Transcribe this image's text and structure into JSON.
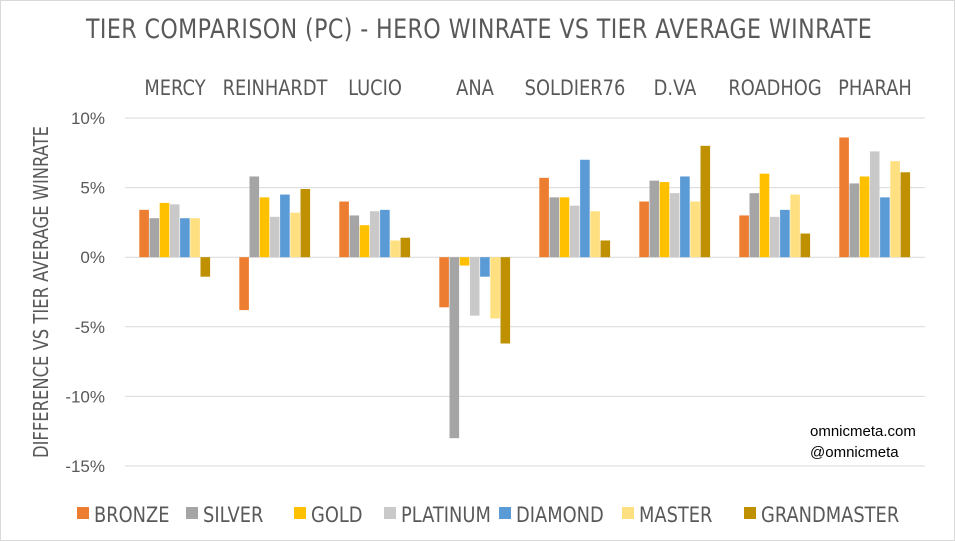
{
  "chart_data": {
    "type": "bar",
    "title": "TIER COMPARISON (PC) - HERO WINRATE VS TIER AVERAGE WINRATE",
    "ylabel": "DIFFERENCE VS TIER AVERAGE WINRATE",
    "categories": [
      "MERCY",
      "REINHARDT",
      "LUCIO",
      "ANA",
      "SOLDIER76",
      "D.VA",
      "ROADHOG",
      "PHARAH"
    ],
    "ylim": [
      -15,
      10
    ],
    "yticks": [
      {
        "value": 10,
        "label": "10%"
      },
      {
        "value": 5,
        "label": "5%"
      },
      {
        "value": 0,
        "label": "0%"
      },
      {
        "value": -5,
        "label": "-5%"
      },
      {
        "value": -10,
        "label": "-10%"
      },
      {
        "value": -15,
        "label": "-15%"
      }
    ],
    "grid": true,
    "legend_position": "bottom",
    "series": [
      {
        "name": "BRONZE",
        "color": "#ED7D31",
        "values": [
          3.4,
          -3.8,
          4.0,
          -3.6,
          5.7,
          4.0,
          3.0,
          8.6
        ]
      },
      {
        "name": "SILVER",
        "color": "#A5A5A5",
        "values": [
          2.8,
          5.8,
          3.0,
          -13.0,
          4.3,
          5.5,
          4.6,
          5.3
        ]
      },
      {
        "name": "GOLD",
        "color": "#FFC000",
        "values": [
          3.9,
          4.3,
          2.3,
          -0.6,
          4.3,
          5.4,
          6.0,
          5.8
        ]
      },
      {
        "name": "PLATINUM",
        "color": "#C9C9C9",
        "values": [
          3.8,
          2.9,
          3.3,
          -4.2,
          3.7,
          4.6,
          2.9,
          7.6
        ]
      },
      {
        "name": "DIAMOND",
        "color": "#5B9BD5",
        "values": [
          2.8,
          4.5,
          3.4,
          -1.4,
          7.0,
          5.8,
          3.4,
          4.3
        ]
      },
      {
        "name": "MASTER",
        "color": "#FFE080",
        "values": [
          2.8,
          3.2,
          1.2,
          -4.4,
          3.3,
          4.0,
          4.5,
          6.9
        ]
      },
      {
        "name": "GRANDMASTER",
        "color": "#BF9000",
        "values": [
          -1.4,
          4.9,
          1.4,
          -6.2,
          1.2,
          8.0,
          1.7,
          6.1
        ]
      }
    ]
  },
  "watermark": {
    "site": "omnicmeta.com",
    "handle": "@omnicmeta"
  }
}
